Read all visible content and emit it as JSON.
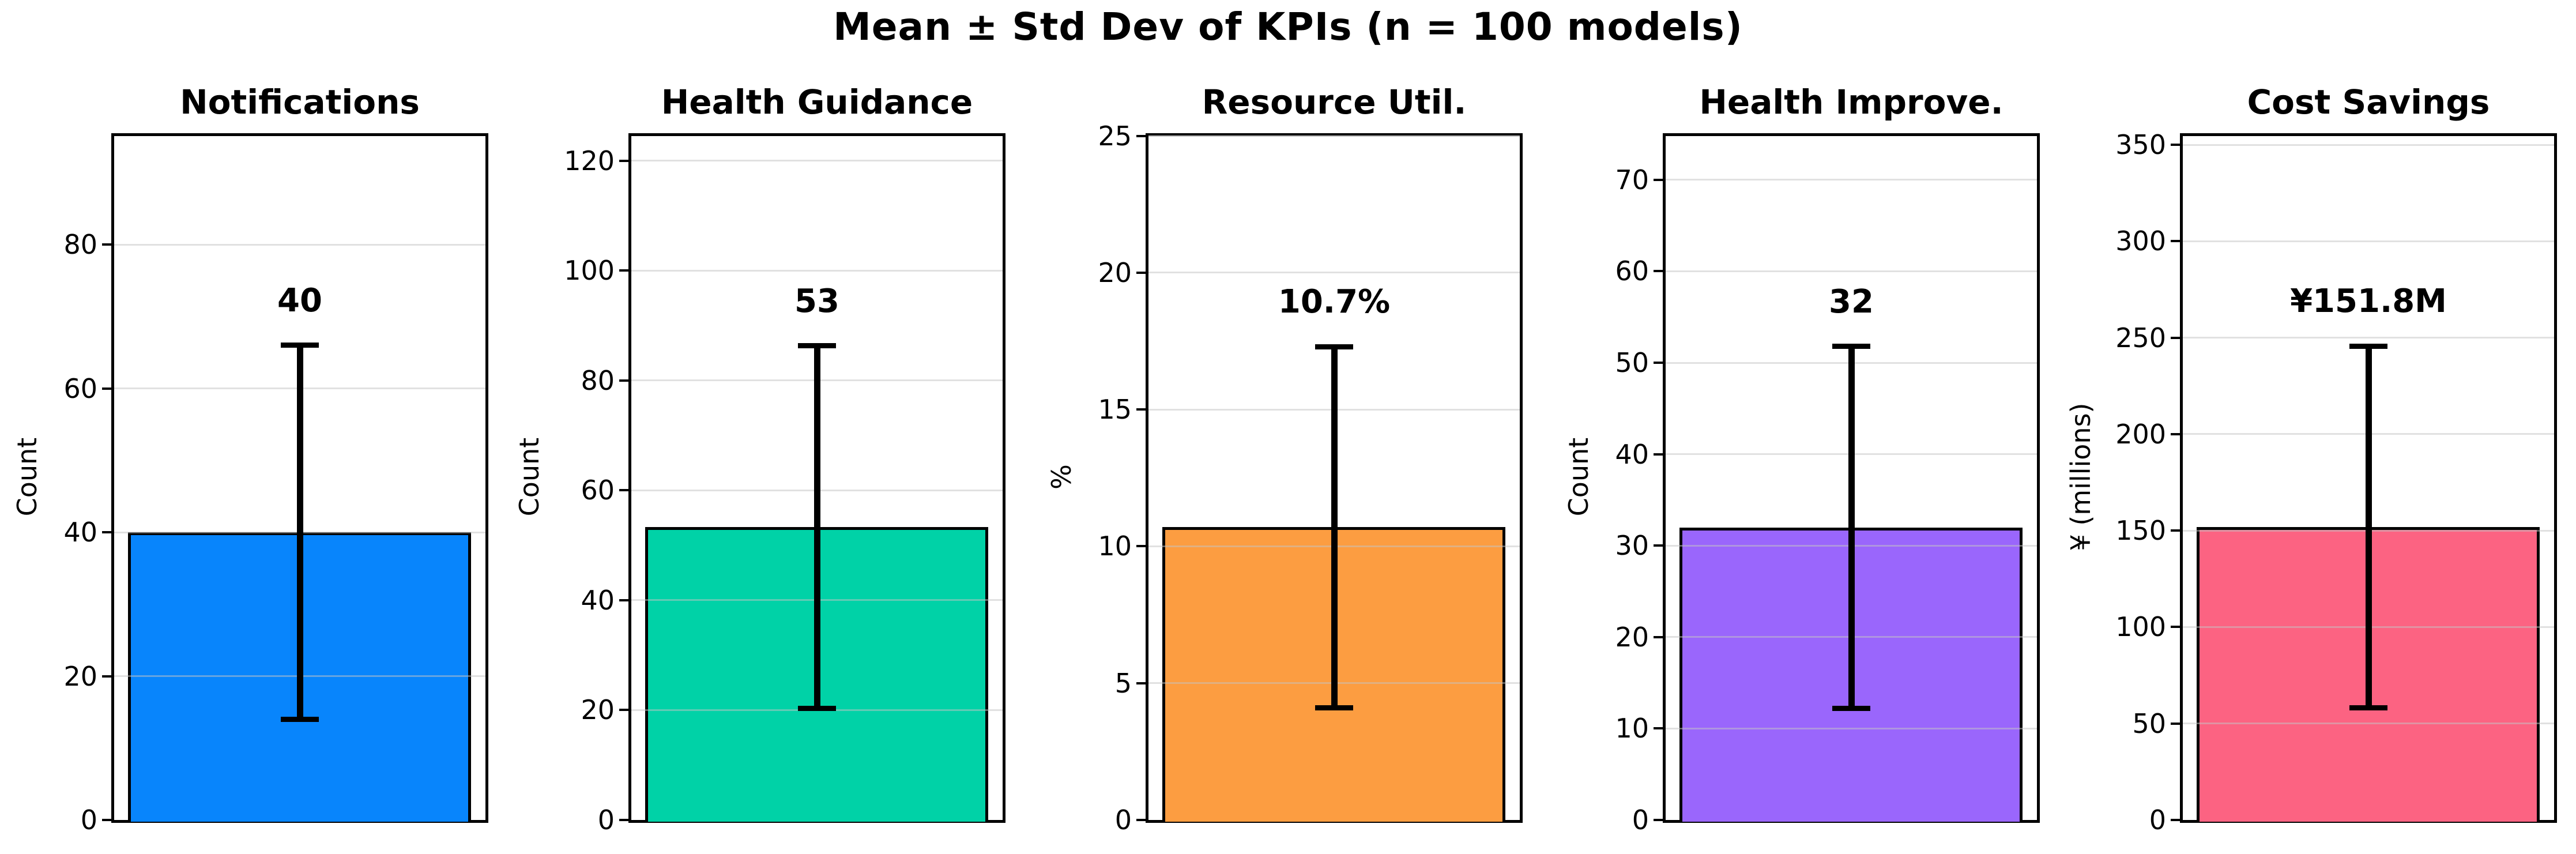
{
  "figure": {
    "title": "Mean ± Std Dev of KPIs  (n = 100 models)",
    "sample_size_note": "n = 100 models",
    "background_color": "#ffffff",
    "error_bar_color": "#000000",
    "grid": true
  },
  "chart_data": [
    {
      "type": "bar",
      "title": "Notifications",
      "ylabel": "Count",
      "categories": [
        "Notifications"
      ],
      "values": [
        40
      ],
      "std": [
        26
      ],
      "value_label": "40",
      "error_low": 14,
      "error_high": 66,
      "ylim": [
        0,
        95.5
      ],
      "yticks": [
        0,
        20,
        40,
        60,
        80
      ],
      "bar_color": "#0885fc",
      "legend_position": "none"
    },
    {
      "type": "bar",
      "title": "Health Guidance",
      "ylabel": "Count",
      "categories": [
        "Health Guidance"
      ],
      "values": [
        53.3
      ],
      "std": [
        33
      ],
      "value_label": "53",
      "error_low": 20.3,
      "error_high": 86.3,
      "ylim": [
        0,
        125
      ],
      "yticks": [
        0,
        20,
        40,
        60,
        80,
        100,
        120
      ],
      "bar_color": "#00d2a7",
      "legend_position": "none"
    },
    {
      "type": "bar",
      "title": "Resource Util.",
      "ylabel": "%",
      "categories": [
        "Resource Util."
      ],
      "values": [
        10.7
      ],
      "std": [
        6.6
      ],
      "value_label": "10.7%",
      "error_low": 4.1,
      "error_high": 17.3,
      "ylim": [
        0,
        25.1
      ],
      "yticks": [
        0,
        5,
        10,
        15,
        20,
        25
      ],
      "bar_color": "#fc9d41",
      "legend_position": "none"
    },
    {
      "type": "bar",
      "title": "Health Improve.",
      "ylabel": "Count",
      "categories": [
        "Health Improve."
      ],
      "values": [
        32
      ],
      "std": [
        19.8
      ],
      "value_label": "32",
      "error_low": 12.2,
      "error_high": 51.8,
      "ylim": [
        0,
        75.1
      ],
      "yticks": [
        0,
        10,
        20,
        30,
        40,
        50,
        60,
        70
      ],
      "bar_color": "#9a66fc",
      "legend_position": "none"
    },
    {
      "type": "bar",
      "title": "Cost Savings",
      "ylabel": "¥ (millions)",
      "categories": [
        "Cost Savings"
      ],
      "values": [
        151.8
      ],
      "std": [
        93.8
      ],
      "value_label": "¥151.8M",
      "error_low": 58,
      "error_high": 245.6,
      "ylim": [
        0,
        356
      ],
      "yticks": [
        0,
        50,
        100,
        150,
        200,
        250,
        300,
        350
      ],
      "bar_color": "#fc6382",
      "legend_position": "none"
    }
  ]
}
